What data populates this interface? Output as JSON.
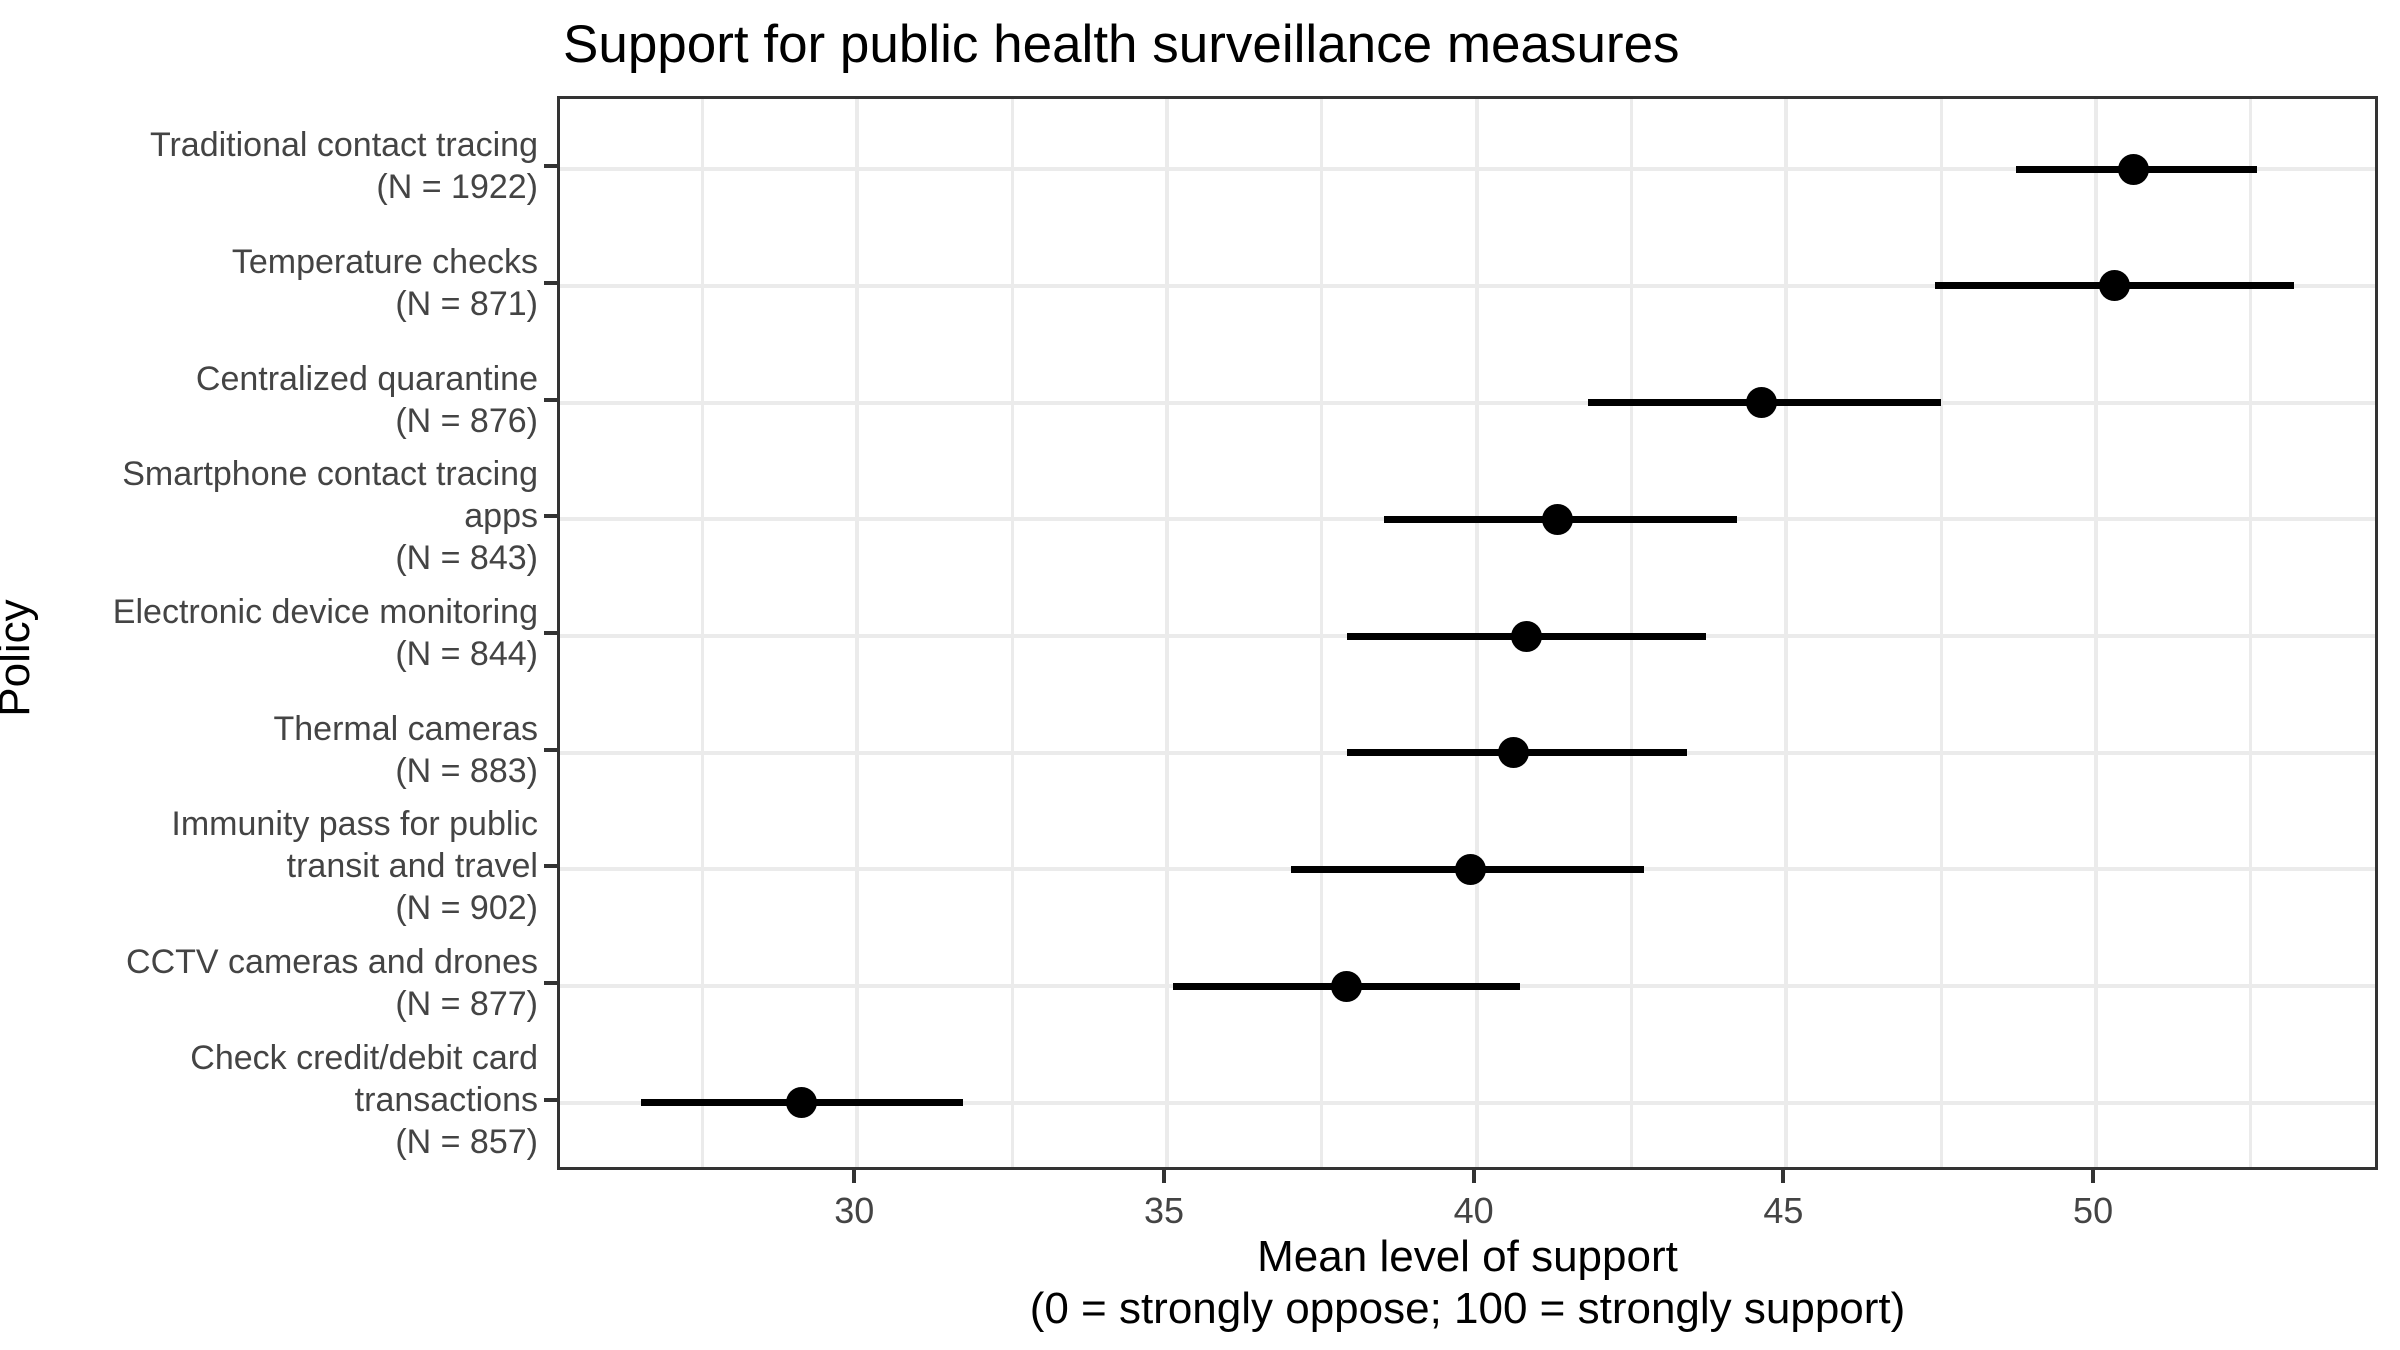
{
  "chart_data": {
    "type": "scatter",
    "subtype": "dot-plot-with-error-bars",
    "title": "Support for public health surveillance measures",
    "xlabel_line1": "Mean level of support",
    "xlabel_line2": "(0 = strongly oppose; 100 = strongly support)",
    "ylabel": "Policy",
    "xlim": [
      25.2,
      54.6
    ],
    "x_major_ticks": [
      30,
      35,
      40,
      45,
      50
    ],
    "x_minor_gridlines": [
      27.5,
      32.5,
      37.5,
      42.5,
      47.5,
      52.5
    ],
    "grid": "on",
    "legend": "none",
    "point_color": "#000000",
    "error_bar_color": "#000000",
    "gridline_color": "#ebebeb",
    "panel_border_color": "#333333",
    "axis_text_color": "#444444",
    "series": [
      {
        "policy": "Traditional contact tracing",
        "label_lines": [
          "Traditional contact tracing",
          "(N = 1922)"
        ],
        "n": 1922,
        "mean": 50.6,
        "ci_low": 48.7,
        "ci_high": 52.6
      },
      {
        "policy": "Temperature checks",
        "label_lines": [
          "Temperature checks",
          "(N = 871)"
        ],
        "n": 871,
        "mean": 50.3,
        "ci_low": 47.4,
        "ci_high": 53.2
      },
      {
        "policy": "Centralized quarantine",
        "label_lines": [
          "Centralized quarantine",
          "(N = 876)"
        ],
        "n": 876,
        "mean": 44.6,
        "ci_low": 41.8,
        "ci_high": 47.5
      },
      {
        "policy": "Smartphone contact tracing apps",
        "label_lines": [
          "Smartphone contact tracing",
          "apps",
          "(N = 843)"
        ],
        "n": 843,
        "mean": 41.3,
        "ci_low": 38.5,
        "ci_high": 44.2
      },
      {
        "policy": "Electronic device monitoring",
        "label_lines": [
          "Electronic device monitoring",
          "(N = 844)"
        ],
        "n": 844,
        "mean": 40.8,
        "ci_low": 37.9,
        "ci_high": 43.7
      },
      {
        "policy": "Thermal cameras",
        "label_lines": [
          "Thermal cameras",
          "(N = 883)"
        ],
        "n": 883,
        "mean": 40.6,
        "ci_low": 37.9,
        "ci_high": 43.4
      },
      {
        "policy": "Immunity pass for public transit and travel",
        "label_lines": [
          "Immunity pass for public",
          "transit and travel",
          "(N = 902)"
        ],
        "n": 902,
        "mean": 39.9,
        "ci_low": 37.0,
        "ci_high": 42.7
      },
      {
        "policy": "CCTV cameras and drones",
        "label_lines": [
          "CCTV cameras and drones",
          "(N = 877)"
        ],
        "n": 877,
        "mean": 37.9,
        "ci_low": 35.1,
        "ci_high": 40.7
      },
      {
        "policy": "Check credit/debit card transactions",
        "label_lines": [
          "Check credit/debit card",
          "transactions",
          "(N = 857)"
        ],
        "n": 857,
        "mean": 29.1,
        "ci_low": 26.5,
        "ci_high": 31.7
      }
    ]
  }
}
